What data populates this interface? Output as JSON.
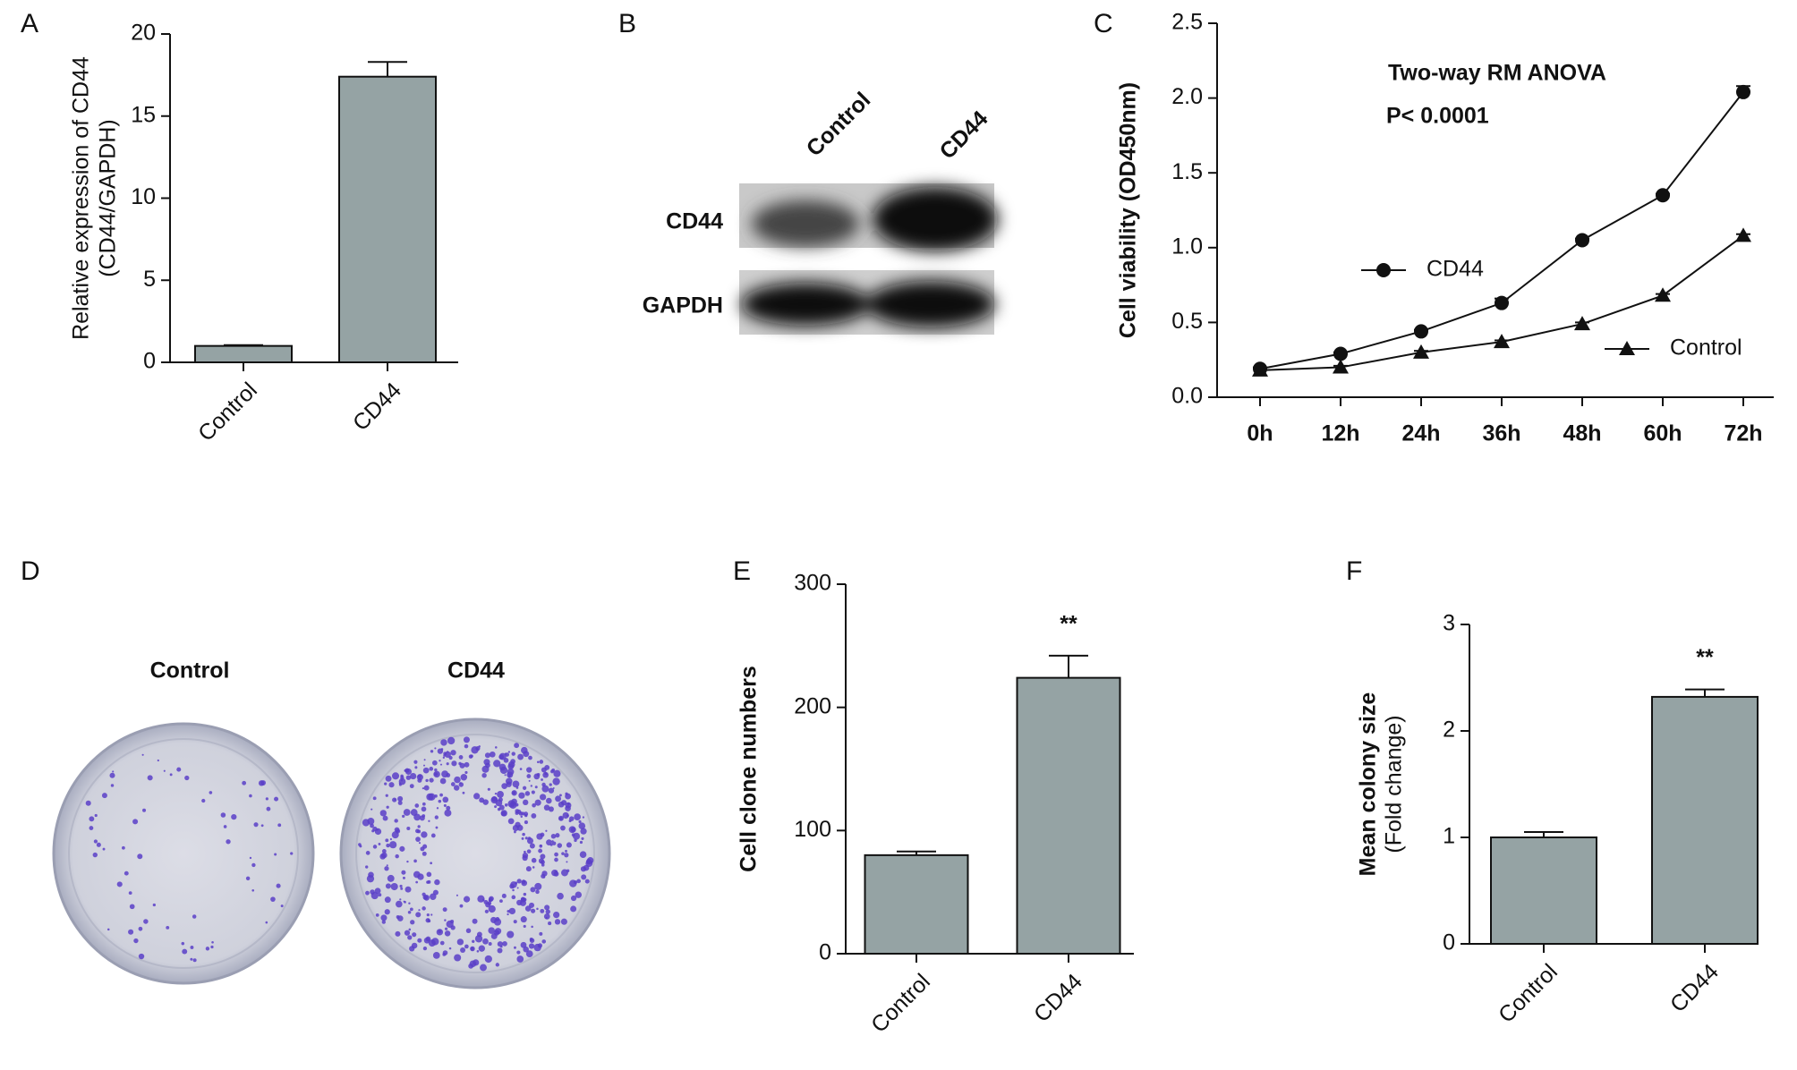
{
  "chart_data": [
    {
      "type": "bar",
      "panel": "A",
      "categories": [
        "Control",
        "CD44"
      ],
      "values": [
        1,
        17.4
      ],
      "errors": [
        0.05,
        0.9
      ],
      "ylabel": [
        "Relative expression of CD44",
        "(CD44/GAPDH)"
      ],
      "ylim": [
        0,
        20
      ],
      "yticks": [
        0,
        5,
        10,
        15,
        20
      ],
      "color": "#95a3a4"
    },
    {
      "type": "line",
      "panel": "C",
      "categories": [
        "0h",
        "12h",
        "24h",
        "36h",
        "48h",
        "60h",
        "72h"
      ],
      "series": [
        {
          "name": "CD44",
          "marker": "circle",
          "color": "#111111",
          "values": [
            0.19,
            0.29,
            0.44,
            0.63,
            1.05,
            1.35,
            2.04
          ],
          "errors": [
            0.01,
            0.01,
            0.01,
            0.03,
            0.01,
            0.01,
            0.04
          ]
        },
        {
          "name": "Control",
          "marker": "triangle",
          "color": "#111111",
          "values": [
            0.18,
            0.2,
            0.3,
            0.37,
            0.49,
            0.68,
            1.08
          ],
          "errors": [
            0.01,
            0.01,
            0.01,
            0.01,
            0.01,
            0.01,
            0.01
          ]
        }
      ],
      "ylabel": "Cell viability (OD450nm)",
      "annotations": [
        "Two-way RM ANOVA",
        "P< 0.0001"
      ],
      "ylim": [
        0,
        2.5
      ],
      "yticks": [
        {
          "value": 0,
          "label": "0.0"
        },
        0.5,
        {
          "value": 1,
          "label": "1.0"
        },
        1.5,
        {
          "value": 2,
          "label": "2.0"
        },
        2.5
      ]
    },
    {
      "type": "bar",
      "panel": "E",
      "categories": [
        "Control",
        "CD44"
      ],
      "values": [
        80,
        224
      ],
      "errors": [
        3,
        18
      ],
      "ylabel": [
        "Cell clone numbers"
      ],
      "annotations": [
        "**"
      ],
      "ylim": [
        0,
        300
      ],
      "yticks": [
        0,
        100,
        200,
        300
      ],
      "color": "#95a3a4"
    },
    {
      "type": "bar",
      "panel": "F",
      "categories": [
        "Control",
        "CD44"
      ],
      "values": [
        1,
        2.32
      ],
      "errors": [
        0.05,
        0.07
      ],
      "ylabel": [
        "Mean colony size",
        "(Fold change)"
      ],
      "annotations": [
        "**"
      ],
      "ylim": [
        0,
        3
      ],
      "yticks": [
        0,
        1,
        2,
        3
      ],
      "color": "#95a3a4"
    }
  ],
  "blot": {
    "panel": "B",
    "lanes": [
      "Control",
      "CD44"
    ],
    "rows": [
      "CD44",
      "GAPDH"
    ]
  },
  "plates": {
    "panel": "D",
    "labels": [
      "Control",
      "CD44"
    ]
  }
}
